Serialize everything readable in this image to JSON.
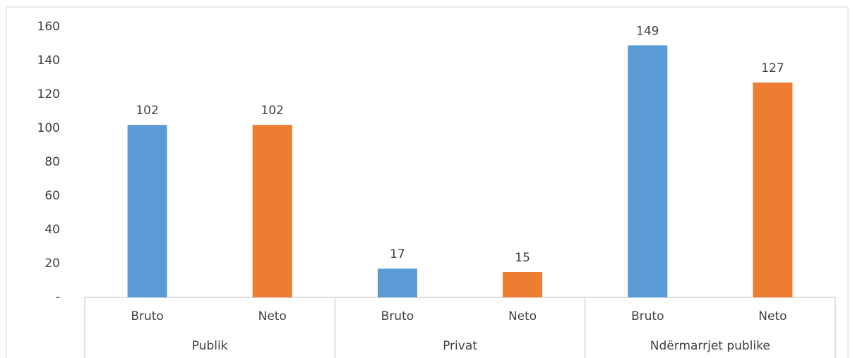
{
  "chart_data": {
    "type": "bar",
    "groups": [
      {
        "name": "Publik",
        "categories": [
          "Bruto",
          "Neto"
        ],
        "values": [
          102,
          102
        ]
      },
      {
        "name": "Privat",
        "categories": [
          "Bruto",
          "Neto"
        ],
        "values": [
          17,
          15
        ]
      },
      {
        "name": "Ndërmarrjet publike",
        "categories": [
          "Bruto",
          "Neto"
        ],
        "values": [
          149,
          127
        ]
      }
    ],
    "colors": [
      "#5b9bd5",
      "#ed7d31"
    ],
    "ylim": [
      0,
      160
    ],
    "yticks": [
      {
        "value": 0,
        "label": "-"
      },
      20,
      40,
      60,
      80,
      100,
      120,
      140,
      160
    ],
    "grid": false
  }
}
